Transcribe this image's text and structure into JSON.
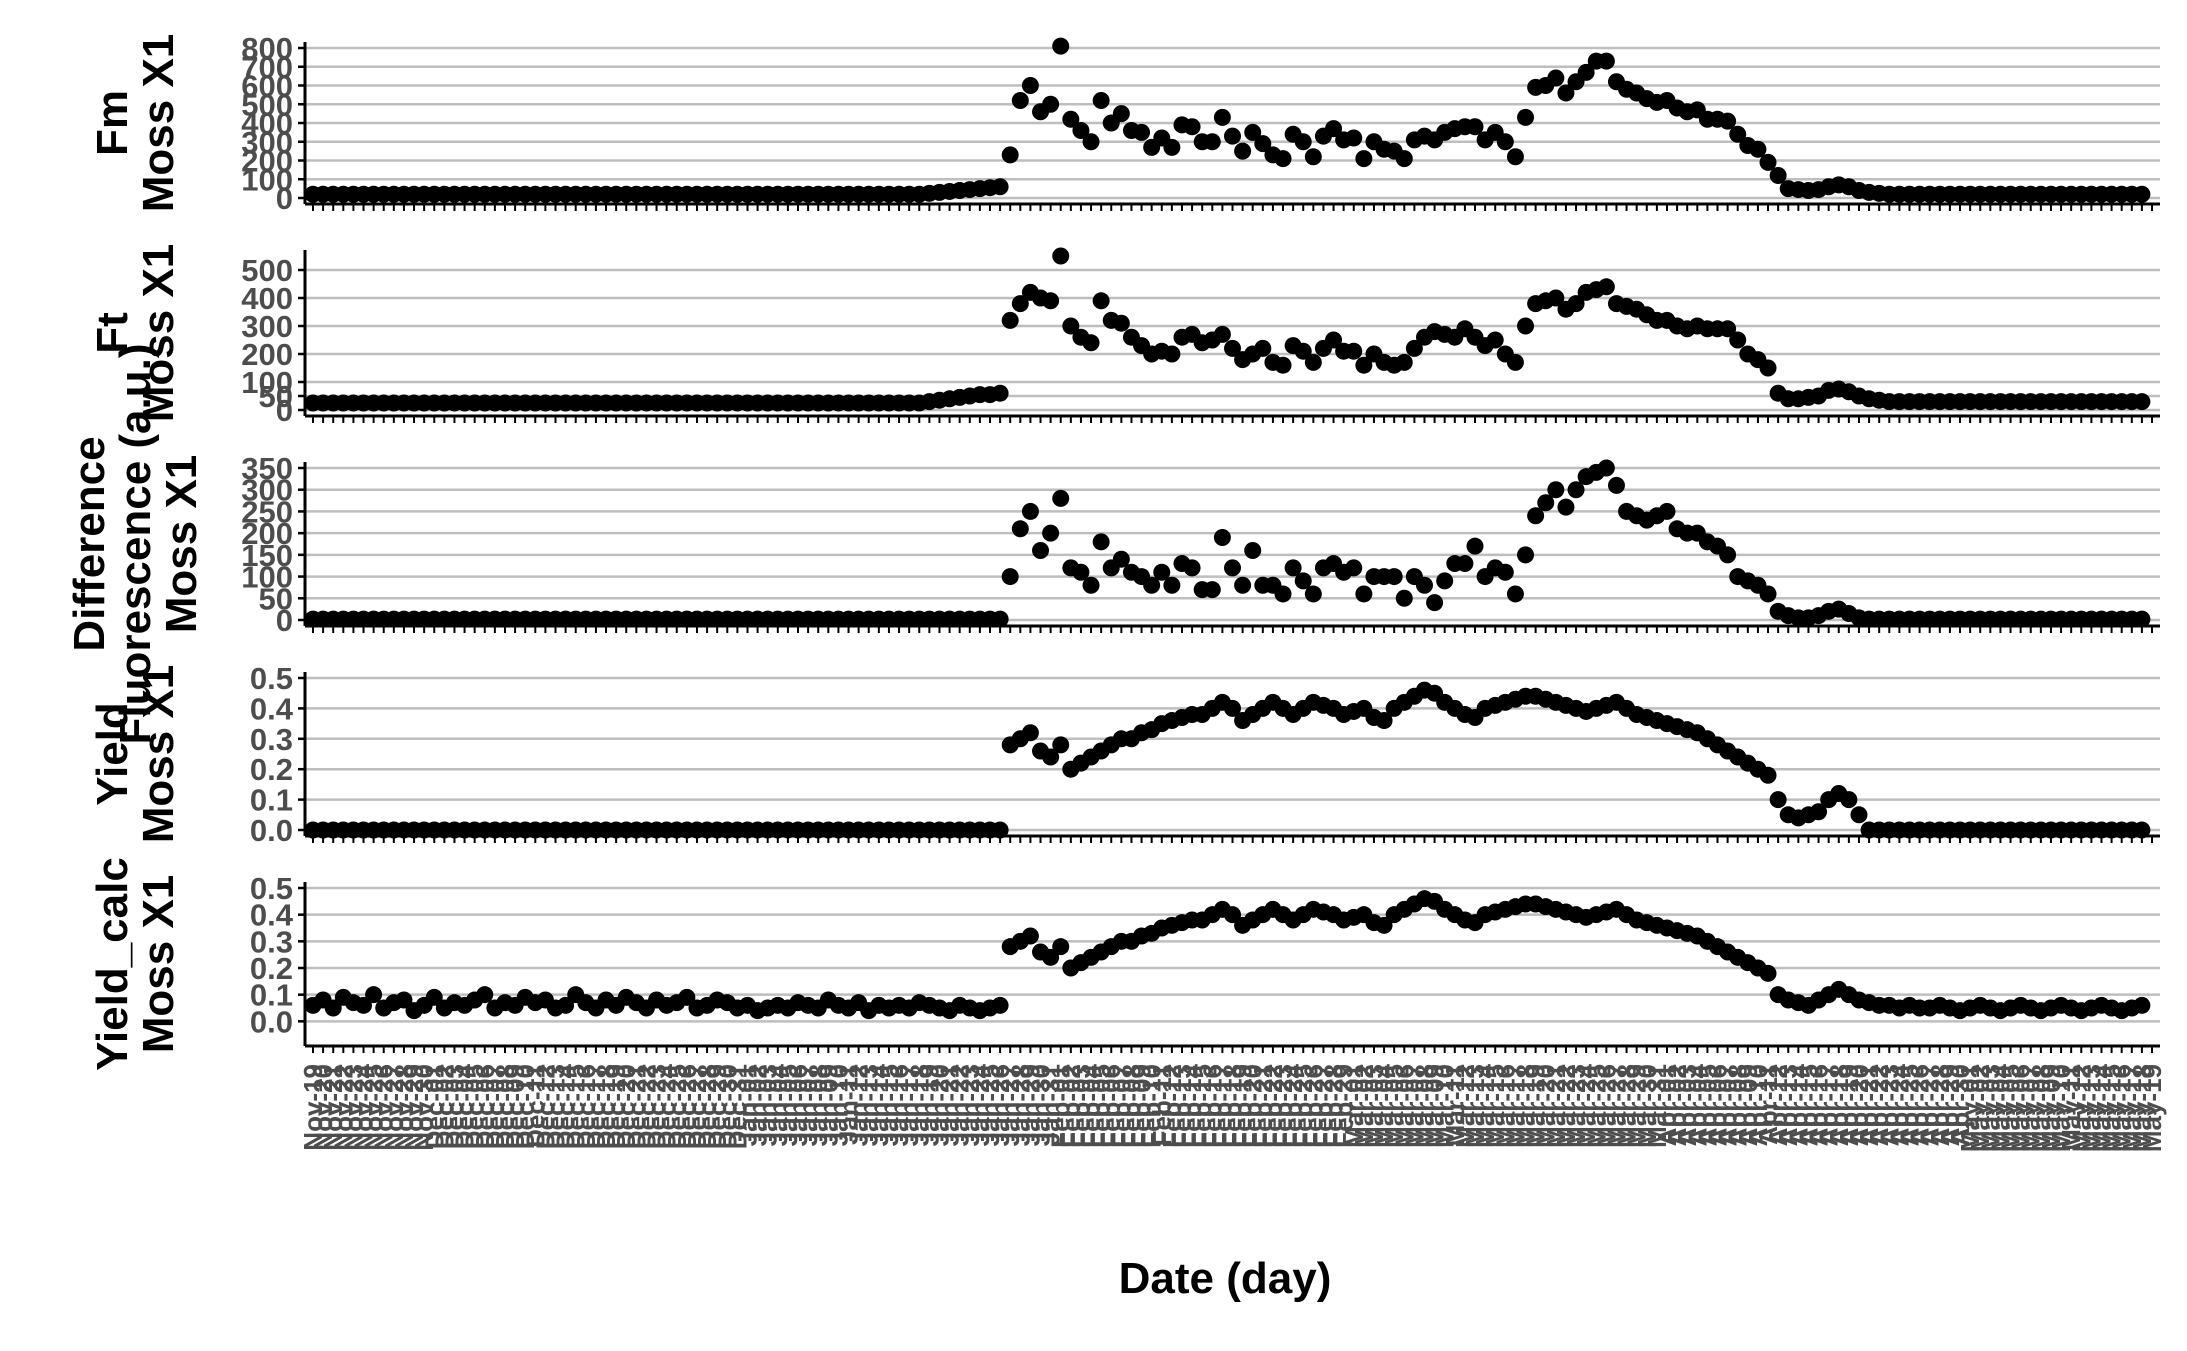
{
  "chart_data": {
    "type": "scatter",
    "xlabel": "Date (day)",
    "x": [
      "Nov-19",
      "Nov-20",
      "Nov-21",
      "Nov-22",
      "Nov-23",
      "Nov-24",
      "Nov-25",
      "Nov-26",
      "Nov-27",
      "Nov-28",
      "Nov-29",
      "Nov-30",
      "Dec-01",
      "Dec-02",
      "Dec-03",
      "Dec-04",
      "Dec-05",
      "Dec-06",
      "Dec-07",
      "Dec-08",
      "Dec-09",
      "Dec-10",
      "Dec-11",
      "Dec-12",
      "Dec-13",
      "Dec-14",
      "Dec-15",
      "Dec-16",
      "Dec-17",
      "Dec-18",
      "Dec-19",
      "Dec-20",
      "Dec-21",
      "Dec-22",
      "Dec-23",
      "Dec-24",
      "Dec-25",
      "Dec-26",
      "Dec-27",
      "Dec-28",
      "Dec-29",
      "Dec-30",
      "Dec-31",
      "Jan-01",
      "Jan-02",
      "Jan-03",
      "Jan-04",
      "Jan-05",
      "Jan-06",
      "Jan-07",
      "Jan-08",
      "Jan-09",
      "Jan-10",
      "Jan-11",
      "Jan-12",
      "Jan-13",
      "Jan-14",
      "Jan-15",
      "Jan-16",
      "Jan-17",
      "Jan-18",
      "Jan-19",
      "Jan-20",
      "Jan-21",
      "Jan-22",
      "Jan-23",
      "Jan-24",
      "Jan-25",
      "Jan-26",
      "Jan-27",
      "Jan-28",
      "Jan-29",
      "Jan-30",
      "Jan-31",
      "Feb-01",
      "Feb-02",
      "Feb-03",
      "Feb-04",
      "Feb-05",
      "Feb-06",
      "Feb-07",
      "Feb-08",
      "Feb-09",
      "Feb-10",
      "Feb-11",
      "Feb-12",
      "Feb-13",
      "Feb-14",
      "Feb-15",
      "Feb-16",
      "Feb-17",
      "Feb-18",
      "Feb-19",
      "Feb-20",
      "Feb-21",
      "Feb-22",
      "Feb-23",
      "Feb-24",
      "Feb-25",
      "Feb-26",
      "Feb-27",
      "Feb-28",
      "Feb-29",
      "Mar-01",
      "Mar-02",
      "Mar-03",
      "Mar-04",
      "Mar-05",
      "Mar-06",
      "Mar-07",
      "Mar-08",
      "Mar-09",
      "Mar-10",
      "Mar-11",
      "Mar-12",
      "Mar-13",
      "Mar-14",
      "Mar-15",
      "Mar-16",
      "Mar-17",
      "Mar-18",
      "Mar-19",
      "Mar-20",
      "Mar-21",
      "Mar-22",
      "Mar-23",
      "Mar-24",
      "Mar-25",
      "Mar-26",
      "Mar-27",
      "Mar-28",
      "Mar-29",
      "Mar-30",
      "Mar-31",
      "Apr-01",
      "Apr-02",
      "Apr-03",
      "Apr-04",
      "Apr-05",
      "Apr-06",
      "Apr-07",
      "Apr-08",
      "Apr-09",
      "Apr-10",
      "Apr-11",
      "Apr-12",
      "Apr-13",
      "Apr-14",
      "Apr-15",
      "Apr-16",
      "Apr-17",
      "Apr-18",
      "Apr-19",
      "Apr-20",
      "Apr-21",
      "Apr-22",
      "Apr-23",
      "Apr-24",
      "Apr-25",
      "Apr-26",
      "Apr-27",
      "Apr-28",
      "Apr-29",
      "Apr-30",
      "May-01",
      "May-02",
      "May-03",
      "May-04",
      "May-05",
      "May-06",
      "May-07",
      "May-08",
      "May-09",
      "May-10",
      "May-11",
      "May-12",
      "May-13",
      "May-14",
      "May-15",
      "May-16",
      "May-17",
      "May-18",
      "May-19"
    ],
    "panels": [
      {
        "ylabel": [
          "Fm",
          "Moss X1"
        ],
        "y_ticks": [
          "0",
          "100",
          "200",
          "300",
          "400",
          "500",
          "600",
          "700",
          "800"
        ],
        "ylim": [
          0,
          800
        ],
        "values": [
          20,
          20,
          20,
          20,
          20,
          20,
          20,
          20,
          20,
          20,
          20,
          20,
          20,
          20,
          20,
          20,
          20,
          20,
          20,
          20,
          20,
          20,
          20,
          20,
          20,
          20,
          20,
          20,
          20,
          20,
          20,
          20,
          20,
          20,
          20,
          20,
          20,
          20,
          20,
          20,
          20,
          20,
          20,
          20,
          20,
          20,
          20,
          20,
          20,
          20,
          20,
          20,
          20,
          20,
          20,
          20,
          20,
          20,
          20,
          20,
          20,
          25,
          30,
          35,
          40,
          45,
          50,
          55,
          60,
          230,
          520,
          600,
          460,
          500,
          810,
          420,
          360,
          300,
          520,
          400,
          450,
          360,
          350,
          270,
          320,
          270,
          390,
          380,
          300,
          300,
          430,
          330,
          250,
          350,
          290,
          230,
          210,
          340,
          300,
          220,
          330,
          370,
          310,
          320,
          210,
          300,
          260,
          250,
          210,
          310,
          330,
          310,
          350,
          370,
          380,
          380,
          310,
          350,
          300,
          220,
          430,
          590,
          600,
          640,
          560,
          620,
          670,
          730,
          730,
          620,
          580,
          560,
          530,
          510,
          520,
          480,
          460,
          470,
          420,
          420,
          410,
          340,
          280,
          260,
          190,
          120,
          50,
          45,
          40,
          45,
          60,
          70,
          60,
          40,
          30,
          25,
          20,
          20,
          20,
          20,
          20,
          20,
          20,
          20,
          20,
          20,
          20,
          20,
          20,
          20,
          20,
          20,
          20,
          20,
          20,
          20,
          20,
          20,
          20,
          20,
          20,
          20
        ]
      },
      {
        "ylabel": [
          "Ft",
          "Moss X1"
        ],
        "y_ticks": [
          "0",
          "50",
          "100",
          "200",
          "300",
          "400",
          "500"
        ],
        "ylim": [
          0,
          550
        ],
        "values": [
          25,
          25,
          25,
          25,
          25,
          25,
          25,
          25,
          25,
          25,
          25,
          25,
          25,
          25,
          25,
          25,
          25,
          25,
          25,
          25,
          25,
          25,
          25,
          25,
          25,
          25,
          25,
          25,
          25,
          25,
          25,
          25,
          25,
          25,
          25,
          25,
          25,
          25,
          25,
          25,
          25,
          25,
          25,
          25,
          25,
          25,
          25,
          25,
          25,
          25,
          25,
          25,
          25,
          25,
          25,
          25,
          25,
          25,
          25,
          25,
          25,
          30,
          35,
          40,
          45,
          50,
          55,
          55,
          60,
          320,
          380,
          420,
          400,
          390,
          550,
          300,
          260,
          240,
          390,
          320,
          310,
          260,
          230,
          200,
          210,
          200,
          260,
          270,
          240,
          250,
          270,
          220,
          180,
          200,
          220,
          170,
          160,
          230,
          210,
          170,
          220,
          250,
          210,
          210,
          160,
          200,
          170,
          160,
          170,
          220,
          260,
          280,
          270,
          260,
          290,
          260,
          230,
          250,
          200,
          170,
          300,
          380,
          390,
          400,
          360,
          380,
          420,
          430,
          440,
          380,
          370,
          360,
          340,
          320,
          320,
          300,
          290,
          300,
          290,
          290,
          290,
          250,
          200,
          180,
          150,
          60,
          40,
          40,
          45,
          50,
          70,
          75,
          65,
          50,
          40,
          35,
          30,
          30,
          30,
          30,
          30,
          30,
          30,
          30,
          30,
          30,
          30,
          30,
          30,
          30,
          30,
          30,
          30,
          30,
          30,
          30,
          30,
          30,
          30,
          30,
          30,
          30
        ]
      },
      {
        "ylabel": [
          "Difference",
          "Fluorescence (a.u.)",
          "Moss X1"
        ],
        "y_ticks": [
          "0",
          "50",
          "100",
          "150",
          "200",
          "250",
          "300",
          "350"
        ],
        "ylim": [
          0,
          350
        ],
        "values": [
          2,
          2,
          2,
          2,
          2,
          2,
          2,
          2,
          2,
          2,
          2,
          2,
          2,
          2,
          2,
          2,
          2,
          2,
          2,
          2,
          2,
          2,
          2,
          2,
          2,
          2,
          2,
          2,
          2,
          2,
          2,
          2,
          2,
          2,
          2,
          2,
          2,
          2,
          2,
          2,
          2,
          2,
          2,
          2,
          2,
          2,
          2,
          2,
          2,
          2,
          2,
          2,
          2,
          2,
          2,
          2,
          2,
          2,
          2,
          2,
          2,
          2,
          2,
          2,
          2,
          2,
          2,
          2,
          2,
          100,
          210,
          250,
          160,
          200,
          280,
          120,
          110,
          80,
          180,
          120,
          140,
          110,
          100,
          80,
          110,
          80,
          130,
          120,
          70,
          70,
          190,
          120,
          80,
          160,
          80,
          80,
          60,
          120,
          90,
          60,
          120,
          130,
          110,
          120,
          60,
          100,
          100,
          100,
          50,
          100,
          80,
          40,
          90,
          130,
          130,
          170,
          100,
          120,
          110,
          60,
          150,
          240,
          270,
          300,
          260,
          300,
          330,
          340,
          350,
          310,
          250,
          240,
          230,
          240,
          250,
          210,
          200,
          200,
          180,
          170,
          150,
          100,
          90,
          80,
          60,
          20,
          10,
          5,
          5,
          10,
          20,
          25,
          15,
          5,
          2,
          2,
          2,
          2,
          2,
          2,
          2,
          2,
          2,
          2,
          2,
          2,
          2,
          2,
          2,
          2,
          2,
          2,
          2,
          2,
          2,
          2,
          2,
          2,
          2,
          2,
          2,
          2
        ]
      },
      {
        "ylabel": [
          "Yield",
          "Moss X1"
        ],
        "y_ticks": [
          "0.0",
          "0.1",
          "0.2",
          "0.3",
          "0.4",
          "0.5"
        ],
        "ylim": [
          0,
          0.5
        ],
        "values": [
          0,
          0,
          0,
          0,
          0,
          0,
          0,
          0,
          0,
          0,
          0,
          0,
          0,
          0,
          0,
          0,
          0,
          0,
          0,
          0,
          0,
          0,
          0,
          0,
          0,
          0,
          0,
          0,
          0,
          0,
          0,
          0,
          0,
          0,
          0,
          0,
          0,
          0,
          0,
          0,
          0,
          0,
          0,
          0,
          0,
          0,
          0,
          0,
          0,
          0,
          0,
          0,
          0,
          0,
          0,
          0,
          0,
          0,
          0,
          0,
          0,
          0,
          0,
          0,
          0,
          0,
          0,
          0,
          0,
          0.28,
          0.3,
          0.32,
          0.26,
          0.24,
          0.28,
          0.2,
          0.22,
          0.24,
          0.26,
          0.28,
          0.3,
          0.3,
          0.32,
          0.33,
          0.35,
          0.36,
          0.37,
          0.38,
          0.38,
          0.4,
          0.42,
          0.4,
          0.36,
          0.38,
          0.4,
          0.42,
          0.4,
          0.38,
          0.4,
          0.42,
          0.41,
          0.4,
          0.38,
          0.39,
          0.4,
          0.37,
          0.36,
          0.4,
          0.42,
          0.44,
          0.46,
          0.45,
          0.42,
          0.4,
          0.38,
          0.37,
          0.4,
          0.41,
          0.42,
          0.43,
          0.44,
          0.44,
          0.43,
          0.42,
          0.41,
          0.4,
          0.39,
          0.4,
          0.41,
          0.42,
          0.4,
          0.38,
          0.37,
          0.36,
          0.35,
          0.34,
          0.33,
          0.32,
          0.3,
          0.28,
          0.26,
          0.24,
          0.22,
          0.2,
          0.18,
          0.1,
          0.05,
          0.04,
          0.05,
          0.06,
          0.1,
          0.12,
          0.1,
          0.05,
          0,
          0,
          0,
          0,
          0,
          0,
          0,
          0,
          0,
          0,
          0,
          0,
          0,
          0,
          0,
          0,
          0,
          0,
          0,
          0,
          0,
          0,
          0,
          0,
          0,
          0,
          0,
          0
        ]
      },
      {
        "ylabel": [
          "Yield_calc",
          "Moss X1"
        ],
        "y_ticks": [
          "0.0",
          "0.1",
          "0.2",
          "0.3",
          "0.4",
          "0.5"
        ],
        "ylim": [
          -0.07,
          0.5
        ],
        "values": [
          0.06,
          0.08,
          0.05,
          0.09,
          0.07,
          0.06,
          0.1,
          0.05,
          0.07,
          0.08,
          0.04,
          0.06,
          0.09,
          0.05,
          0.07,
          0.06,
          0.08,
          0.1,
          0.05,
          0.07,
          0.06,
          0.09,
          0.07,
          0.08,
          0.05,
          0.06,
          0.1,
          0.07,
          0.05,
          0.08,
          0.06,
          0.09,
          0.07,
          0.05,
          0.08,
          0.06,
          0.07,
          0.09,
          0.05,
          0.06,
          0.08,
          0.07,
          0.05,
          0.06,
          0.04,
          0.05,
          0.06,
          0.05,
          0.07,
          0.06,
          0.05,
          0.08,
          0.06,
          0.05,
          0.07,
          0.04,
          0.06,
          0.05,
          0.06,
          0.05,
          0.07,
          0.06,
          0.05,
          0.04,
          0.06,
          0.05,
          0.04,
          0.05,
          0.06,
          0.28,
          0.3,
          0.32,
          0.26,
          0.24,
          0.28,
          0.2,
          0.22,
          0.24,
          0.26,
          0.28,
          0.3,
          0.3,
          0.32,
          0.33,
          0.35,
          0.36,
          0.37,
          0.38,
          0.38,
          0.4,
          0.42,
          0.4,
          0.36,
          0.38,
          0.4,
          0.42,
          0.4,
          0.38,
          0.4,
          0.42,
          0.41,
          0.4,
          0.38,
          0.39,
          0.4,
          0.37,
          0.36,
          0.4,
          0.42,
          0.44,
          0.46,
          0.45,
          0.42,
          0.4,
          0.38,
          0.37,
          0.4,
          0.41,
          0.42,
          0.43,
          0.44,
          0.44,
          0.43,
          0.42,
          0.41,
          0.4,
          0.39,
          0.4,
          0.41,
          0.42,
          0.4,
          0.38,
          0.37,
          0.36,
          0.35,
          0.34,
          0.33,
          0.32,
          0.3,
          0.28,
          0.26,
          0.24,
          0.22,
          0.2,
          0.18,
          0.1,
          0.08,
          0.07,
          0.06,
          0.08,
          0.1,
          0.12,
          0.1,
          0.08,
          0.07,
          0.06,
          0.06,
          0.05,
          0.06,
          0.05,
          0.05,
          0.06,
          0.05,
          0.04,
          0.05,
          0.06,
          0.05,
          0.04,
          0.05,
          0.06,
          0.05,
          0.04,
          0.05,
          0.06,
          0.05,
          0.04,
          0.05,
          0.06,
          0.05,
          0.04,
          0.05,
          0.06
        ]
      }
    ],
    "grid": true,
    "point_color": "#000000",
    "gridline_color": "#bebebe",
    "axis_color": "#000000",
    "tick_label_color": "#4d4d4d"
  }
}
